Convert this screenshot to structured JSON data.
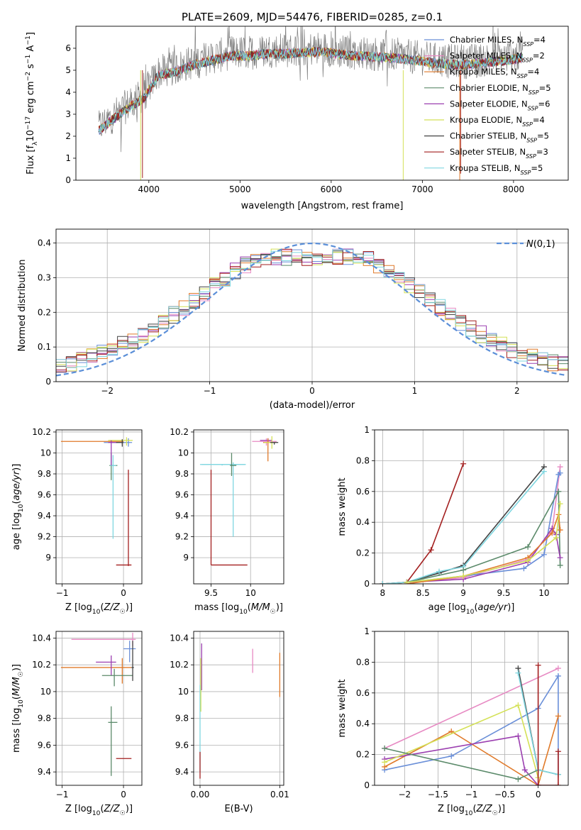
{
  "figure": {
    "top_title": "PLATE=2609, MJD=54476, FIBERID=0285, z=0.1"
  },
  "chart_data": [
    {
      "id": "spectrum",
      "type": "line",
      "title": "PLATE=2609, MJD=54476, FIBERID=0285, z=0.1",
      "xlabel": "wavelength [Angstrom, rest frame]",
      "ylabel": "Flux [f_λ10^-17 erg cm^-2 s^-1 A^-1]",
      "xlim": [
        3200,
        8600
      ],
      "ylim": [
        0,
        7
      ],
      "xticks": [
        4000,
        5000,
        6000,
        7000,
        8000
      ],
      "yticks": [
        0,
        1,
        2,
        3,
        4,
        5,
        6
      ],
      "observed_color": "#808080",
      "continuum": {
        "x": [
          3450,
          3600,
          3800,
          3950,
          4100,
          4300,
          4500,
          4700,
          4900,
          5100,
          5300,
          5500,
          5700,
          5900,
          6100,
          6300,
          6500,
          6700,
          6900,
          7100,
          7300,
          7500,
          7700,
          7900,
          8100
        ],
        "y": [
          2.4,
          2.9,
          3.5,
          3.9,
          4.9,
          5.1,
          5.4,
          5.6,
          5.8,
          5.8,
          5.9,
          5.9,
          5.95,
          6.0,
          5.85,
          5.8,
          5.75,
          5.7,
          5.6,
          5.5,
          5.4,
          5.4,
          5.5,
          5.6,
          5.7
        ]
      },
      "legend_position": "upper right",
      "series": [
        {
          "name": "Chabrier MILES, N_SSP=4",
          "color": "#6a8fd8"
        },
        {
          "name": "Salpeter MILES, N_SSP=2",
          "color": "#e78ac3"
        },
        {
          "name": "Kroupa MILES, N_SSP=4",
          "color": "#e07a2a"
        },
        {
          "name": "Chabrier ELODIE, N_SSP=5",
          "color": "#5b8a6a"
        },
        {
          "name": "Salpeter ELODIE, N_SSP=6",
          "color": "#9b3fb0"
        },
        {
          "name": "Kroupa ELODIE, N_SSP=4",
          "color": "#d4e157"
        },
        {
          "name": "Chabrier STELIB, N_SSP=5",
          "color": "#444444"
        },
        {
          "name": "Salpeter STELIB, N_SSP=3",
          "color": "#a31f1f"
        },
        {
          "name": "Kroupa STELIB, N_SSP=5",
          "color": "#7fd6e0"
        }
      ],
      "legend_labels": [
        {
          "pre": "Chabrier MILES, N",
          "sub": "SSP",
          "post": "=4"
        },
        {
          "pre": "Salpeter MILES, N",
          "sub": "SSP",
          "post": "=2"
        },
        {
          "pre": "Kroupa MILES, N",
          "sub": "SSP",
          "post": "=4"
        },
        {
          "pre": "Chabrier ELODIE, N",
          "sub": "SSP",
          "post": "=5"
        },
        {
          "pre": "Salpeter ELODIE, N",
          "sub": "SSP",
          "post": "=6"
        },
        {
          "pre": "Kroupa ELODIE, N",
          "sub": "SSP",
          "post": "=4"
        },
        {
          "pre": "Chabrier STELIB, N",
          "sub": "SSP",
          "post": "=5"
        },
        {
          "pre": "Salpeter STELIB, N",
          "sub": "SSP",
          "post": "=3"
        },
        {
          "pre": "Kroupa STELIB, N",
          "sub": "SSP",
          "post": "=5"
        }
      ]
    },
    {
      "id": "residuals",
      "type": "line",
      "xlabel": "(data-model)/error",
      "ylabel": "Normed distribution",
      "xlim": [
        -2.5,
        2.5
      ],
      "ylim": [
        0,
        0.44
      ],
      "xticks": [
        -2,
        -1,
        0,
        1,
        2
      ],
      "yticks": [
        0.0,
        0.1,
        0.2,
        0.3,
        0.4
      ],
      "grid": true,
      "reference_curve": {
        "name": "N(0,1)",
        "mean": 0,
        "sigma": 1,
        "color": "#5b8fd8",
        "dash": "dashed"
      },
      "bin_width": 0.1,
      "legend_position": "upper right"
    },
    {
      "id": "age_vs_Z",
      "type": "scatter",
      "xlabel": "Z [log10(Z/Z☉)]",
      "ylabel": "age [log10(age/yr)]",
      "xlim": [
        -1.1,
        0.3
      ],
      "ylim": [
        8.75,
        10.22
      ],
      "xticks": [
        -1,
        0
      ],
      "yticks": [
        9.0,
        9.2,
        9.4,
        9.6,
        9.8,
        10.0,
        10.2
      ],
      "grid": true,
      "points": [
        {
          "x": -0.02,
          "y": 10.11,
          "xerr": [
            1.0,
            0.02
          ],
          "yerr": [
            0.03,
            0.02
          ],
          "color": "#e07a2a"
        },
        {
          "x": 0.08,
          "y": 10.1,
          "xerr": [
            0.4,
            0.06
          ],
          "yerr": [
            0.04,
            0.04
          ],
          "color": "#6a8fd8"
        },
        {
          "x": 0.05,
          "y": 10.12,
          "xerr": [
            0.3,
            0.1
          ],
          "yerr": [
            0.05,
            0.03
          ],
          "color": "#d4e157"
        },
        {
          "x": -0.2,
          "y": 9.88,
          "xerr": [
            0.03,
            0.1
          ],
          "yerr": [
            0.14,
            0.12
          ],
          "color": "#5b8a6a"
        },
        {
          "x": -0.17,
          "y": 9.88,
          "xerr": [
            0.05,
            0.05
          ],
          "yerr": [
            0.7,
            0.1
          ],
          "color": "#7fd6e0"
        },
        {
          "x": 0.08,
          "y": 8.93,
          "xerr": [
            0.2,
            0.05
          ],
          "yerr": [
            0.01,
            0.91
          ],
          "color": "#a31f1f"
        },
        {
          "x": -0.2,
          "y": 10.1,
          "xerr": [
            0.05,
            0.1
          ],
          "yerr": [
            0.22,
            0.02
          ],
          "color": "#9b3fb0"
        },
        {
          "x": -0.02,
          "y": 10.1,
          "xerr": [
            0.1,
            0.02
          ],
          "yerr": [
            0.04,
            0.03
          ],
          "color": "#444444"
        }
      ]
    },
    {
      "id": "age_vs_mass",
      "type": "scatter",
      "xlabel": "mass [log10(M/M☉)]",
      "ylabel": "",
      "xlim": [
        9.28,
        10.42
      ],
      "ylim": [
        8.75,
        10.22
      ],
      "xticks": [
        9.5,
        10.0
      ],
      "yticks": [
        9.0,
        9.2,
        9.4,
        9.6,
        9.8,
        10.0,
        10.2
      ],
      "grid": true,
      "points": [
        {
          "x": 9.64,
          "y": 9.89,
          "xerr": [
            0.28,
            0.3
          ],
          "yerr": [
            0.01,
            0.0
          ],
          "color": "#7fd6e0"
        },
        {
          "x": 9.78,
          "y": 9.89,
          "xerr": [
            0.4,
            0.15
          ],
          "yerr": [
            0.69,
            0.02
          ],
          "color": "#7fd6e0"
        },
        {
          "x": 9.76,
          "y": 9.88,
          "xerr": [
            0.02,
            0.06
          ],
          "yerr": [
            0.1,
            0.12
          ],
          "color": "#5b8a6a"
        },
        {
          "x": 9.5,
          "y": 8.93,
          "xerr": [
            0.0,
            0.46
          ],
          "yerr": [
            0.0,
            0.91
          ],
          "color": "#a31f1f"
        },
        {
          "x": 10.2,
          "y": 10.11,
          "xerr": [
            0.18,
            0.13
          ],
          "yerr": [
            0.04,
            0.03
          ],
          "color": "#e78ac3"
        },
        {
          "x": 10.22,
          "y": 10.12,
          "xerr": [
            0.1,
            0.05
          ],
          "yerr": [
            0.02,
            0.02
          ],
          "color": "#9b3fb0"
        },
        {
          "x": 10.22,
          "y": 10.1,
          "xerr": [
            0.06,
            0.06
          ],
          "yerr": [
            0.18,
            0.04
          ],
          "color": "#e07a2a"
        },
        {
          "x": 10.27,
          "y": 10.1,
          "xerr": [
            0.1,
            0.05
          ],
          "yerr": [
            0.06,
            0.06
          ],
          "color": "#d4e157"
        },
        {
          "x": 10.3,
          "y": 10.1,
          "xerr": [
            0.05,
            0.05
          ],
          "yerr": [
            0.02,
            0.0
          ],
          "color": "#444444"
        }
      ]
    },
    {
      "id": "mass_weight_vs_age",
      "type": "line",
      "xlabel": "age [log10(age/yr)]",
      "ylabel": "mass weight",
      "xlim": [
        7.9,
        10.3
      ],
      "ylim": [
        0,
        1.0
      ],
      "xticks": [
        8.0,
        8.5,
        9.0,
        9.5,
        10.0
      ],
      "yticks": [
        0.0,
        0.2,
        0.4,
        0.6,
        0.8,
        1.0
      ],
      "grid": true,
      "series": [
        {
          "color": "#a31f1f",
          "x": [
            8.0,
            8.3,
            8.6,
            9.0
          ],
          "y": [
            0.0,
            0.01,
            0.22,
            0.78
          ]
        },
        {
          "color": "#444444",
          "x": [
            8.0,
            8.3,
            8.7,
            9.0,
            10.0
          ],
          "y": [
            0.0,
            0.01,
            0.07,
            0.12,
            0.76
          ]
        },
        {
          "color": "#7fd6e0",
          "x": [
            8.0,
            8.3,
            8.7,
            9.0,
            10.0
          ],
          "y": [
            0.0,
            0.01,
            0.08,
            0.11,
            0.73
          ]
        },
        {
          "color": "#e78ac3",
          "x": [
            8.3,
            9.0,
            9.8,
            10.1,
            10.2
          ],
          "y": [
            0.01,
            0.04,
            0.16,
            0.34,
            0.76
          ]
        },
        {
          "color": "#6a8fd8",
          "x": [
            8.3,
            9.0,
            9.75,
            10.0,
            10.18,
            10.2
          ],
          "y": [
            0.01,
            0.05,
            0.1,
            0.19,
            0.71,
            0.72
          ]
        },
        {
          "color": "#5b8a6a",
          "x": [
            8.3,
            9.0,
            9.8,
            10.18,
            10.2
          ],
          "y": [
            0.01,
            0.09,
            0.24,
            0.6,
            0.12
          ]
        },
        {
          "color": "#9b3fb0",
          "x": [
            8.3,
            9.0,
            9.8,
            10.1,
            10.15,
            10.2
          ],
          "y": [
            0.01,
            0.03,
            0.14,
            0.36,
            0.32,
            0.17
          ]
        },
        {
          "color": "#e07a2a",
          "x": [
            8.3,
            9.0,
            9.8,
            10.1,
            10.18,
            10.2
          ],
          "y": [
            0.0,
            0.05,
            0.17,
            0.33,
            0.45,
            0.35
          ]
        },
        {
          "color": "#d4e157",
          "x": [
            8.3,
            9.0,
            9.8,
            10.15,
            10.2
          ],
          "y": [
            0.01,
            0.05,
            0.15,
            0.3,
            0.52
          ]
        }
      ]
    },
    {
      "id": "mass_vs_Z",
      "type": "scatter",
      "xlabel": "Z [log10(Z/Z☉)]",
      "ylabel": "mass [log10(M/M☉)]",
      "xlim": [
        -1.1,
        0.3
      ],
      "ylim": [
        9.3,
        10.45
      ],
      "xticks": [
        -1,
        0
      ],
      "yticks": [
        9.4,
        9.6,
        9.8,
        10.0,
        10.2,
        10.4
      ],
      "grid": true,
      "points": [
        {
          "x": 0.15,
          "y": 10.39,
          "xerr": [
            1.0,
            0.05
          ],
          "yerr": [
            0.05,
            0.05
          ],
          "color": "#e78ac3"
        },
        {
          "x": 0.1,
          "y": 10.32,
          "xerr": [
            0.1,
            0.1
          ],
          "yerr": [
            0.1,
            0.06
          ],
          "color": "#6a8fd8"
        },
        {
          "x": -0.02,
          "y": 10.18,
          "xerr": [
            1.0,
            0.15
          ],
          "yerr": [
            0.12,
            0.07
          ],
          "color": "#e07a2a"
        },
        {
          "x": -0.2,
          "y": 10.22,
          "xerr": [
            0.25,
            0.08
          ],
          "yerr": [
            0.1,
            0.05
          ],
          "color": "#9b3fb0"
        },
        {
          "x": -0.15,
          "y": 10.12,
          "xerr": [
            0.2,
            0.3
          ],
          "yerr": [
            0.08,
            0.05
          ],
          "color": "#5b8a6a"
        },
        {
          "x": -0.2,
          "y": 9.77,
          "xerr": [
            0.05,
            0.1
          ],
          "yerr": [
            0.4,
            0.12
          ],
          "color": "#5b8a6a"
        },
        {
          "x": 0.08,
          "y": 9.5,
          "xerr": [
            0.2,
            0.05
          ],
          "yerr": [
            0.0,
            0.0
          ],
          "color": "#a31f1f"
        },
        {
          "x": 0.15,
          "y": 10.18,
          "xerr": [
            0.02,
            0.02
          ],
          "yerr": [
            0.1,
            0.2
          ],
          "color": "#444444"
        }
      ]
    },
    {
      "id": "mass_vs_ebv",
      "type": "scatter",
      "xlabel": "E(B-V)",
      "ylabel": "",
      "xlim": [
        -0.0008,
        0.0105
      ],
      "ylim": [
        9.3,
        10.45
      ],
      "xticks": [
        0.0,
        0.01
      ],
      "xtick_labels": [
        "0.00",
        "0.01"
      ],
      "yticks": [
        9.4,
        9.6,
        9.8,
        10.0,
        10.2,
        10.4
      ],
      "grid": true,
      "points": [
        {
          "x": 0.0066,
          "y": 10.22,
          "yerr": [
            0.08,
            0.1
          ],
          "color": "#e78ac3"
        },
        {
          "x": 0.01,
          "y": 10.14,
          "yerr": [
            0.18,
            0.15
          ],
          "color": "#e07a2a"
        },
        {
          "x": 0.0002,
          "y": 10.26,
          "yerr": [
            0.25,
            0.1
          ],
          "color": "#9b3fb0"
        },
        {
          "x": 0.0,
          "y": 9.75,
          "yerr": [
            0.35,
            0.3
          ],
          "color": "#7fd6e0"
        },
        {
          "x": 0.0,
          "y": 9.45,
          "yerr": [
            0.1,
            0.1
          ],
          "color": "#a31f1f"
        },
        {
          "x": 0.0001,
          "y": 10.05,
          "yerr": [
            0.2,
            0.2
          ],
          "color": "#d4e157"
        }
      ]
    },
    {
      "id": "mass_weight_vs_Z",
      "type": "line",
      "xlabel": "Z [log10(Z/Z☉)]",
      "ylabel": "mass weight",
      "xlim": [
        -2.45,
        0.45
      ],
      "ylim": [
        0,
        1.0
      ],
      "xticks": [
        -2.0,
        -1.5,
        -1.0,
        -0.5,
        0.0
      ],
      "yticks": [
        0.0,
        0.2,
        0.4,
        0.6,
        0.8,
        1.0
      ],
      "grid": true,
      "series": [
        {
          "color": "#e78ac3",
          "x": [
            -2.3,
            0.3
          ],
          "y": [
            0.24,
            0.76
          ]
        },
        {
          "color": "#6a8fd8",
          "x": [
            -2.3,
            -1.3,
            0.0,
            0.3,
            0.3
          ],
          "y": [
            0.1,
            0.19,
            0.5,
            0.71,
            0.07
          ]
        },
        {
          "color": "#e07a2a",
          "x": [
            -2.3,
            -1.3,
            0.0,
            0.3
          ],
          "y": [
            0.12,
            0.35,
            0.0,
            0.45
          ]
        },
        {
          "color": "#9b3fb0",
          "x": [
            -2.3,
            -0.3,
            -0.2,
            0.0
          ],
          "y": [
            0.17,
            0.32,
            0.1,
            0.0
          ]
        },
        {
          "color": "#d4e157",
          "x": [
            -2.3,
            -0.3,
            0.0
          ],
          "y": [
            0.15,
            0.52,
            0.05
          ]
        },
        {
          "color": "#5b8a6a",
          "x": [
            -2.3,
            -0.3,
            0.0,
            0.3
          ],
          "y": [
            0.24,
            0.04,
            0.1,
            0.07
          ]
        },
        {
          "color": "#444444",
          "x": [
            -0.3,
            0.0
          ],
          "y": [
            0.76,
            0.1
          ]
        },
        {
          "color": "#7fd6e0",
          "x": [
            -0.3,
            0.0,
            0.3
          ],
          "y": [
            0.73,
            0.1,
            0.07
          ]
        },
        {
          "color": "#a31f1f",
          "x": [
            0.0,
            0.0,
            0.3,
            0.3
          ],
          "y": [
            0.78,
            0.0,
            0.0,
            0.22
          ]
        }
      ]
    }
  ]
}
